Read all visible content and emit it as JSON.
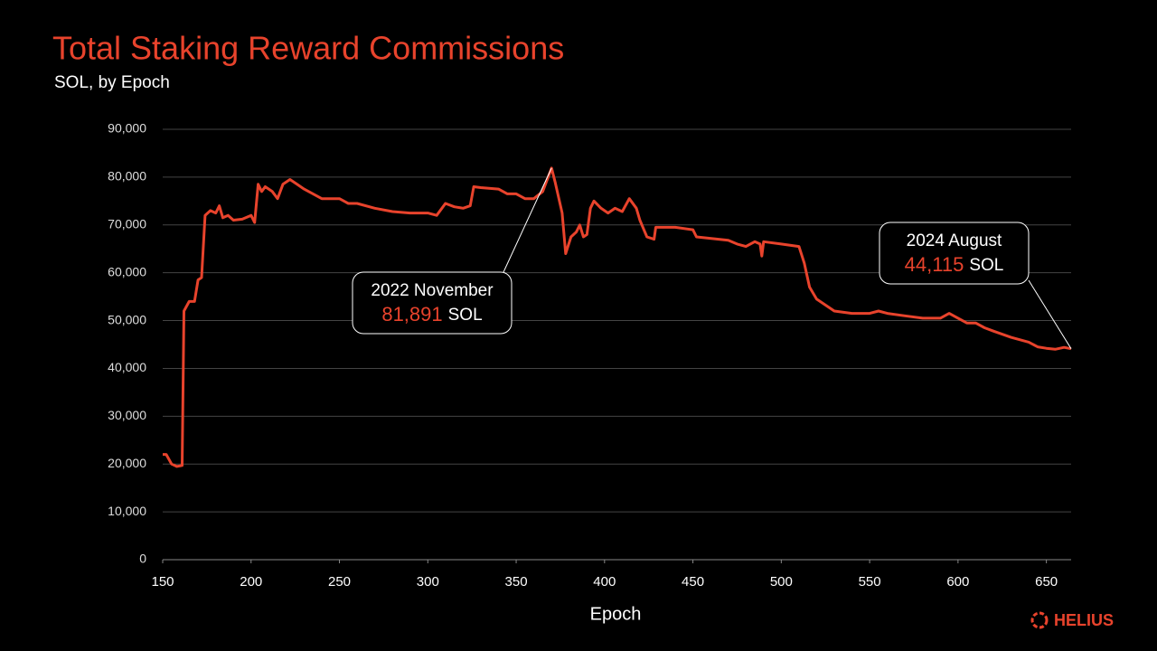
{
  "chart_data": {
    "type": "line",
    "title": "Total Staking Reward Commissions",
    "subtitle": "SOL, by Epoch",
    "x_label": "Epoch",
    "color": "#e8432c",
    "grid": true,
    "x": [
      150,
      152,
      155,
      158,
      161,
      162,
      165,
      168,
      170,
      172,
      174,
      177,
      180,
      182,
      184,
      187,
      190,
      195,
      200,
      202,
      204,
      206,
      208,
      212,
      215,
      218,
      222,
      226,
      230,
      240,
      250,
      255,
      260,
      270,
      280,
      290,
      300,
      305,
      310,
      315,
      320,
      324,
      326,
      330,
      340,
      345,
      350,
      355,
      360,
      365,
      370,
      372,
      376,
      378,
      381,
      384,
      386,
      388,
      390,
      392,
      394,
      398,
      402,
      406,
      410,
      414,
      418,
      420,
      424,
      428,
      429,
      440,
      450,
      452,
      470,
      475,
      480,
      485,
      488,
      489,
      490,
      500,
      510,
      513,
      516,
      520,
      530,
      540,
      550,
      555,
      560,
      570,
      580,
      590,
      595,
      600,
      605,
      610,
      615,
      620,
      630,
      640,
      645,
      650,
      655,
      660,
      664
    ],
    "values": [
      22000,
      22000,
      20000,
      19500,
      19700,
      52000,
      54000,
      54000,
      58500,
      59000,
      72000,
      73000,
      72500,
      74000,
      71500,
      72000,
      71000,
      71200,
      72000,
      70500,
      78500,
      77000,
      78000,
      77000,
      75500,
      78500,
      79500,
      78500,
      77500,
      75500,
      75500,
      74500,
      74500,
      73500,
      72800,
      72500,
      72500,
      72000,
      74500,
      73800,
      73500,
      74000,
      78000,
      77800,
      77500,
      76500,
      76500,
      75500,
      75500,
      77000,
      81891,
      79000,
      72500,
      64000,
      67500,
      68500,
      70000,
      67500,
      68000,
      73500,
      75000,
      73500,
      72500,
      73500,
      72800,
      75500,
      73500,
      71000,
      67500,
      67000,
      69500,
      69500,
      69000,
      67500,
      66800,
      66000,
      65500,
      66500,
      66000,
      63500,
      66500,
      66000,
      65500,
      62000,
      57000,
      54500,
      52000,
      51500,
      51500,
      52000,
      51500,
      51000,
      50500,
      50500,
      51500,
      50500,
      49500,
      49500,
      48500,
      47800,
      46500,
      45500,
      44500,
      44200,
      44000,
      44400,
      44115
    ],
    "xlim": [
      150,
      664
    ],
    "xticks": [
      150,
      200,
      250,
      300,
      350,
      400,
      450,
      500,
      550,
      600,
      650
    ],
    "ylim": [
      0,
      90000
    ],
    "yticks": [
      0,
      {
        "value": 10000,
        "label": "10,000"
      },
      {
        "value": 20000,
        "label": "20,000"
      },
      {
        "value": 30000,
        "label": "30,000"
      },
      {
        "value": 40000,
        "label": "40,000"
      },
      {
        "value": 50000,
        "label": "50,000"
      },
      {
        "value": 60000,
        "label": "60,000"
      },
      {
        "value": 70000,
        "label": "70,000"
      },
      {
        "value": 80000,
        "label": "80,000"
      },
      {
        "value": 90000,
        "label": "90,000"
      }
    ],
    "annotations": [
      {
        "label": "2022 November",
        "x": 370,
        "value": 81891,
        "value_label": "81,891",
        "unit": "SOL"
      },
      {
        "label": "2024 August",
        "x": 664,
        "value": 44115,
        "value_label": "44,115",
        "unit": "SOL"
      }
    ],
    "logo": "HELIUS"
  }
}
